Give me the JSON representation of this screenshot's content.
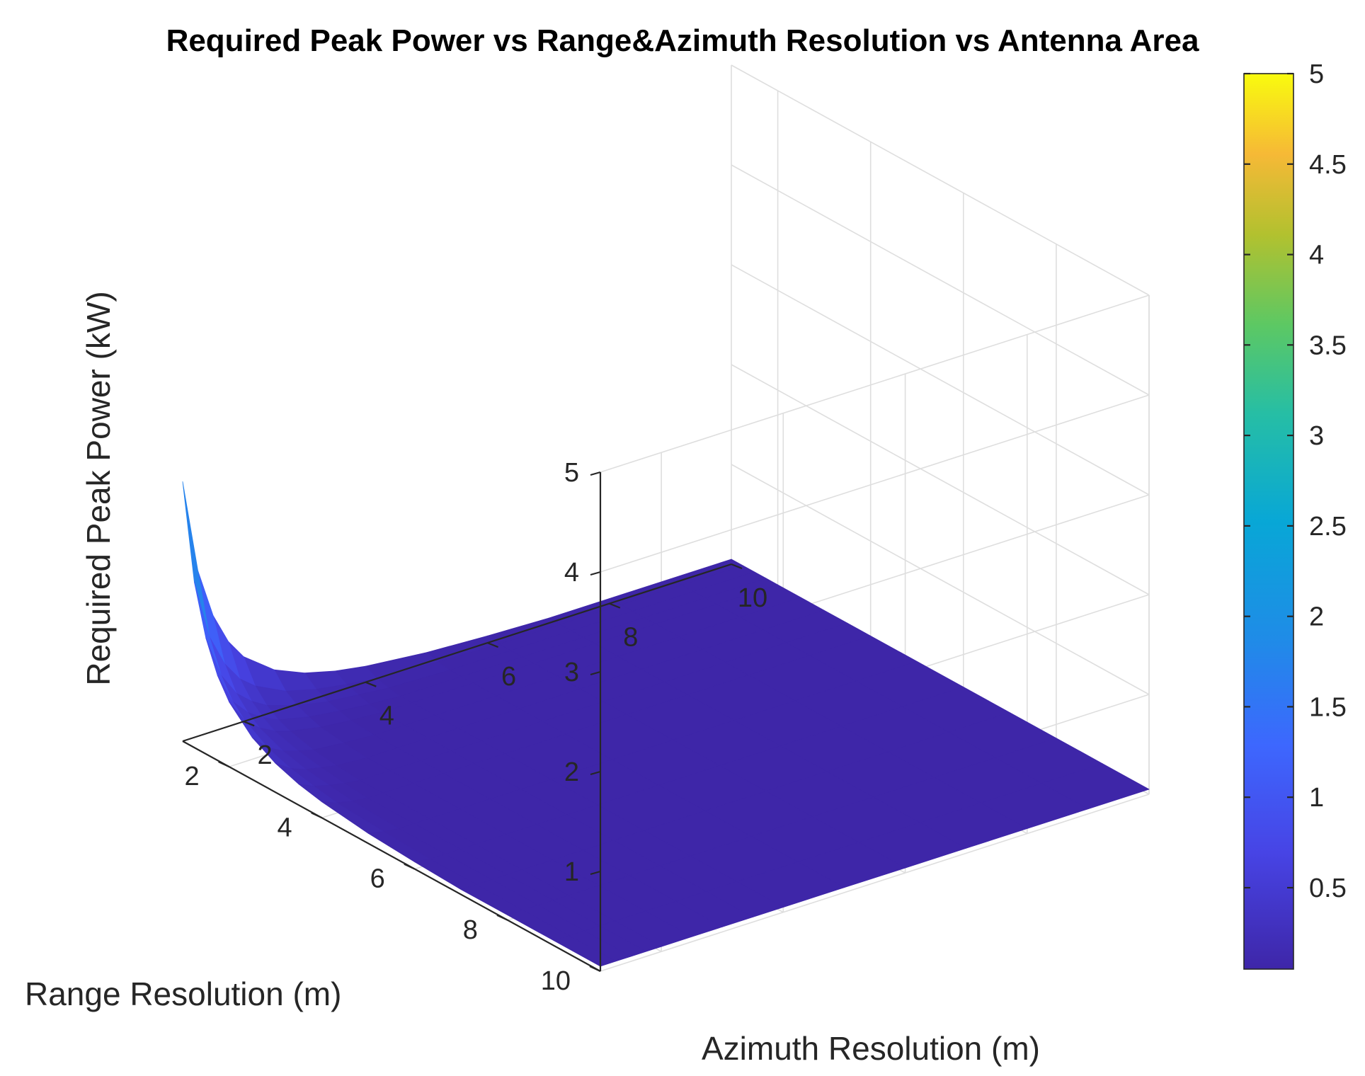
{
  "chart_data": {
    "type": "surface",
    "title": "Required Peak Power vs Range&Azimuth Resolution vs Antenna Area",
    "xlabel": "Azimuth Resolution (m)",
    "ylabel": "Range Resolution (m)",
    "zlabel": "Required Peak Power (kW)",
    "xlim": [
      1,
      10
    ],
    "ylim": [
      1,
      10
    ],
    "zlim": [
      0,
      5
    ],
    "x_ticks": [
      2,
      4,
      6,
      8,
      10
    ],
    "y_ticks": [
      2,
      4,
      6,
      8,
      10
    ],
    "z_ticks": [
      1,
      2,
      3,
      4,
      5
    ],
    "colorbar": {
      "colormap": "parula",
      "limits": [
        0.05,
        5
      ],
      "ticks": [
        0.5,
        1,
        1.5,
        2,
        2.5,
        3,
        3.5,
        4,
        4.5,
        5
      ]
    },
    "surface": {
      "x": [
        1,
        1.25,
        1.5,
        1.75,
        2,
        2.5,
        3,
        3.5,
        4,
        5,
        6,
        7,
        8,
        9,
        10
      ],
      "y": [
        1,
        1.25,
        1.5,
        1.75,
        2,
        2.5,
        3,
        3.5,
        4,
        5,
        6,
        7,
        8,
        9,
        10
      ],
      "z": [
        [
          2.6,
          1.66,
          1.16,
          0.85,
          0.65,
          0.42,
          0.29,
          0.21,
          0.16,
          0.1,
          0.07,
          0.05,
          0.05,
          0.05,
          0.05
        ],
        [
          1.66,
          1.06,
          0.74,
          0.54,
          0.42,
          0.27,
          0.19,
          0.14,
          0.1,
          0.07,
          0.05,
          0.05,
          0.05,
          0.05,
          0.05
        ],
        [
          1.16,
          0.74,
          0.51,
          0.38,
          0.29,
          0.19,
          0.13,
          0.1,
          0.07,
          0.05,
          0.05,
          0.05,
          0.05,
          0.05,
          0.05
        ],
        [
          0.85,
          0.54,
          0.38,
          0.28,
          0.21,
          0.14,
          0.1,
          0.07,
          0.05,
          0.05,
          0.05,
          0.05,
          0.05,
          0.05,
          0.05
        ],
        [
          0.65,
          0.42,
          0.29,
          0.21,
          0.16,
          0.1,
          0.07,
          0.05,
          0.05,
          0.05,
          0.05,
          0.05,
          0.05,
          0.05,
          0.05
        ],
        [
          0.42,
          0.27,
          0.19,
          0.14,
          0.1,
          0.07,
          0.05,
          0.05,
          0.05,
          0.05,
          0.05,
          0.05,
          0.05,
          0.05,
          0.05
        ],
        [
          0.29,
          0.19,
          0.13,
          0.1,
          0.07,
          0.05,
          0.05,
          0.05,
          0.05,
          0.05,
          0.05,
          0.05,
          0.05,
          0.05,
          0.05
        ],
        [
          0.21,
          0.14,
          0.1,
          0.07,
          0.05,
          0.05,
          0.05,
          0.05,
          0.05,
          0.05,
          0.05,
          0.05,
          0.05,
          0.05,
          0.05
        ],
        [
          0.16,
          0.1,
          0.07,
          0.05,
          0.05,
          0.05,
          0.05,
          0.05,
          0.05,
          0.05,
          0.05,
          0.05,
          0.05,
          0.05,
          0.05
        ],
        [
          0.1,
          0.07,
          0.05,
          0.05,
          0.05,
          0.05,
          0.05,
          0.05,
          0.05,
          0.05,
          0.05,
          0.05,
          0.05,
          0.05,
          0.05
        ],
        [
          0.07,
          0.05,
          0.05,
          0.05,
          0.05,
          0.05,
          0.05,
          0.05,
          0.05,
          0.05,
          0.05,
          0.05,
          0.05,
          0.05,
          0.05
        ],
        [
          0.05,
          0.05,
          0.05,
          0.05,
          0.05,
          0.05,
          0.05,
          0.05,
          0.05,
          0.05,
          0.05,
          0.05,
          0.05,
          0.05,
          0.05
        ],
        [
          0.05,
          0.05,
          0.05,
          0.05,
          0.05,
          0.05,
          0.05,
          0.05,
          0.05,
          0.05,
          0.05,
          0.05,
          0.05,
          0.05,
          0.05
        ],
        [
          0.05,
          0.05,
          0.05,
          0.05,
          0.05,
          0.05,
          0.05,
          0.05,
          0.05,
          0.05,
          0.05,
          0.05,
          0.05,
          0.05,
          0.05
        ],
        [
          0.05,
          0.05,
          0.05,
          0.05,
          0.05,
          0.05,
          0.05,
          0.05,
          0.05,
          0.05,
          0.05,
          0.05,
          0.05,
          0.05,
          0.05
        ]
      ]
    }
  }
}
